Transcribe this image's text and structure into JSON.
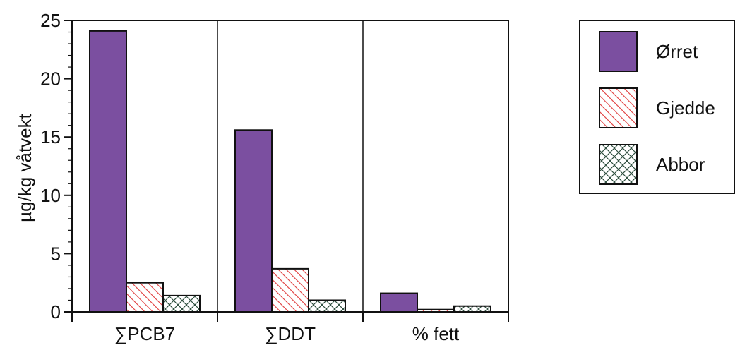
{
  "chart_data": {
    "type": "bar",
    "title": "",
    "xlabel": "",
    "ylabel": "µg/kg våtvekt",
    "ylim": [
      0,
      25
    ],
    "yticks": [
      0,
      5,
      10,
      15,
      20,
      25
    ],
    "grid": "vertical separators between categories",
    "legend_position": "right",
    "categories": [
      "∑PCB7",
      "∑DDT",
      "% fett"
    ],
    "series": [
      {
        "name": "Ørret",
        "values": [
          24.1,
          15.6,
          1.6
        ],
        "color": "#7b4fa0",
        "pattern": "solid"
      },
      {
        "name": "Gjedde",
        "values": [
          2.5,
          3.7,
          0.2
        ],
        "color": "#e03a3a",
        "pattern": "diagonal-hatch"
      },
      {
        "name": "Abbor",
        "values": [
          1.4,
          1.0,
          0.5
        ],
        "color": "#2f4f3f",
        "pattern": "crosshatch"
      }
    ]
  }
}
